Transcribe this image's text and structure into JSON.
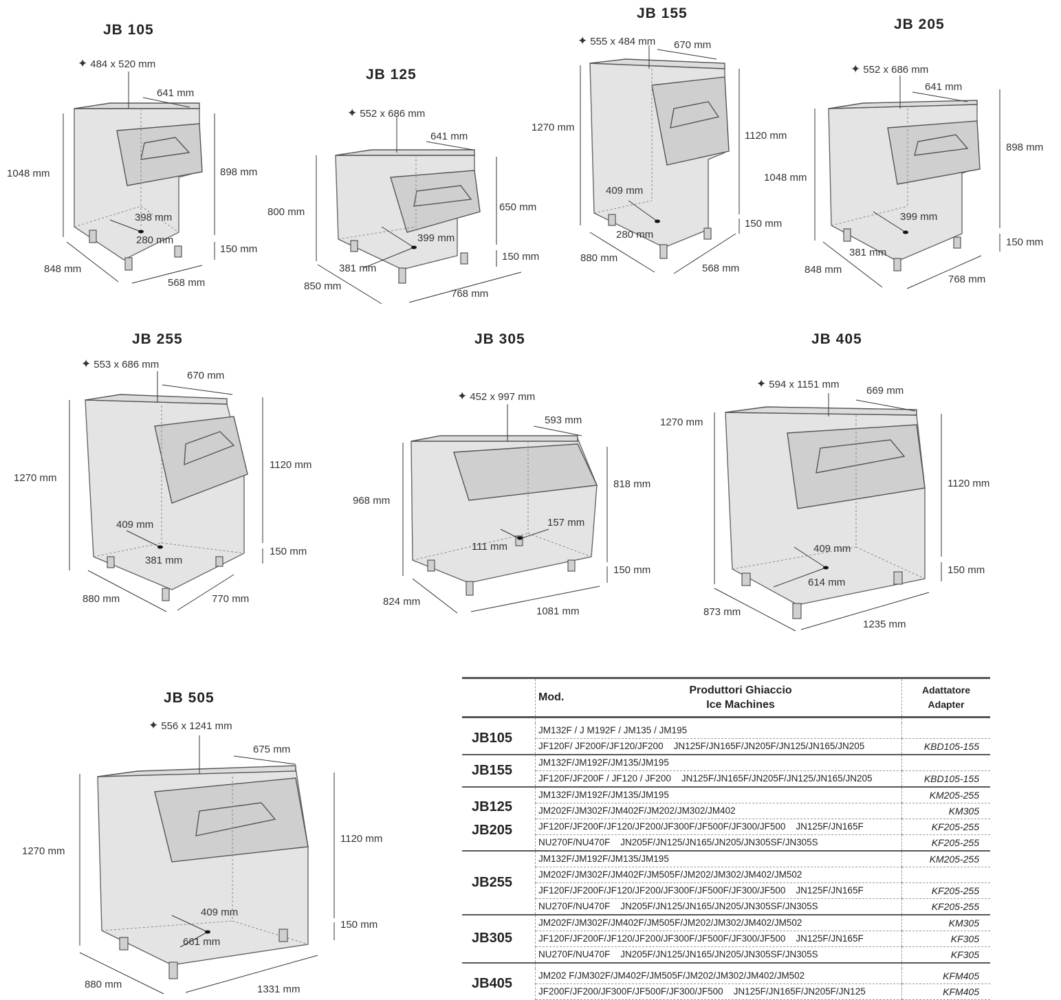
{
  "bins": [
    {
      "id": "jb105",
      "title": "JB 105",
      "opening": "484 x 520 mm",
      "depth_top": "641 mm",
      "height_total": "1048 mm",
      "height_bin": "898 mm",
      "height_legs": "150 mm",
      "drain_a": "398 mm",
      "drain_b": "280 mm",
      "depth": "848 mm",
      "width": "568 mm"
    },
    {
      "id": "jb125",
      "title": "JB 125",
      "opening": "552 x 686 mm",
      "depth_top": "641 mm",
      "height_total": "800 mm",
      "height_bin": "650 mm",
      "height_legs": "150 mm",
      "drain_a": "399 mm",
      "drain_b": "381 mm",
      "depth": "850 mm",
      "width": "768 mm"
    },
    {
      "id": "jb155",
      "title": "JB 155",
      "opening": "555 x 484 mm",
      "depth_top": "670 mm",
      "height_total": "1270 mm",
      "height_bin": "1120 mm",
      "height_legs": "150 mm",
      "drain_a": "409 mm",
      "drain_b": "280 mm",
      "depth": "880 mm",
      "width": "568 mm"
    },
    {
      "id": "jb205",
      "title": "JB 205",
      "opening": "552 x 686 mm",
      "depth_top": "641 mm",
      "height_total": "1048 mm",
      "height_bin": "898 mm",
      "height_legs": "150 mm",
      "drain_a": "399 mm",
      "drain_b": "381 mm",
      "depth": "848 mm",
      "width": "768 mm"
    },
    {
      "id": "jb255",
      "title": "JB 255",
      "opening": "553 x 686 mm",
      "depth_top": "670 mm",
      "height_total": "1270 mm",
      "height_bin": "1120 mm",
      "height_legs": "150 mm",
      "drain_a": "409 mm",
      "drain_b": "381 mm",
      "depth": "880 mm",
      "width": "770 mm"
    },
    {
      "id": "jb305",
      "title": "JB 305",
      "opening": "452 x 997 mm",
      "depth_top": "593 mm",
      "height_total": "968 mm",
      "height_bin": "818 mm",
      "height_legs": "150 mm",
      "drain_a": "157 mm",
      "drain_b": "111 mm",
      "depth": "824 mm",
      "width": "1081 mm"
    },
    {
      "id": "jb405",
      "title": "JB 405",
      "opening": "594 x 1151  mm",
      "depth_top": "669 mm",
      "height_total": "1270 mm",
      "height_bin": "1120 mm",
      "height_legs": "150 mm",
      "drain_a": "409 mm",
      "drain_b": "614 mm",
      "depth": "873 mm",
      "width": "1235 mm"
    },
    {
      "id": "jb505",
      "title": "JB 505",
      "opening": "556 x 1241  mm",
      "depth_top": "675 mm",
      "height_total": "1270 mm",
      "height_bin": "1120 mm",
      "height_legs": "150 mm",
      "drain_a": "409 mm",
      "drain_b": "661 mm",
      "depth": "880 mm",
      "width": "1331 mm"
    }
  ],
  "table": {
    "header": {
      "mod": "Mod.",
      "producers_line1": "Produttori Ghiaccio",
      "producers_line2": "Ice Machines",
      "adapter_line1": "Adattatore",
      "adapter_line2": "Adapter"
    },
    "groups": [
      {
        "model": "JB105",
        "rows": [
          {
            "machines": "JM132F / J M192F / JM135 / JM195",
            "adapter": ""
          },
          {
            "machines": "JF120F/ JF200F/JF120/JF200    JN125F/JN165F/JN205F/JN125/JN165/JN205",
            "adapter": "KBD105-155"
          }
        ]
      },
      {
        "model": "JB155",
        "rows": [
          {
            "machines": "JM132F/JM192F/JM135/JM195",
            "adapter": ""
          },
          {
            "machines": "JF120F/JF200F / JF120 / JF200    JN125F/JN165F/JN205F/JN125/JN165/JN205",
            "adapter": "KBD105-155"
          }
        ]
      },
      {
        "model": "JB125",
        "model2": "JB205",
        "rows": [
          {
            "machines": "JM132F/JM192F/JM135/JM195",
            "adapter": "KM205-255"
          },
          {
            "machines": "JM202F/JM302F/JM402F/JM202/JM302/JM402",
            "adapter": "KM305"
          },
          {
            "machines": "JF120F/JF200F/JF120/JF200/JF300F/JF500F/JF300/JF500    JN125F/JN165F",
            "adapter": "KF205-255"
          },
          {
            "machines": "NU270F/NU470F    JN205F/JN125/JN165/JN205/JN305SF/JN305S",
            "adapter": "KF205-255"
          }
        ]
      },
      {
        "model": "JB255",
        "rows": [
          {
            "machines": "JM132F/JM192F/JM135/JM195",
            "adapter": "KM205-255"
          },
          {
            "machines": "JM202F/JM302F/JM402F/JM505F/JM202/JM302/JM402/JM502",
            "adapter": ""
          },
          {
            "machines": "JF120F/JF200F/JF120/JF200/JF300F/JF500F/JF300/JF500    JN125F/JN165F",
            "adapter": "KF205-255"
          },
          {
            "machines": "NU270F/NU470F    JN205F/JN125/JN165/JN205/JN305SF/JN305S",
            "adapter": "KF205-255"
          }
        ]
      },
      {
        "model": "JB305",
        "rows": [
          {
            "machines": "JM202F/JM302F/JM402F/JM505F/JM202/JM302/JM402/JM502",
            "adapter": "KM305"
          },
          {
            "machines": "JF120F/JF200F/JF120/JF200/JF300F/JF500F/JF300/JF500    JN125F/JN165F",
            "adapter": "KF305"
          },
          {
            "machines": "NU270F/NU470F    JN205F/JN125/JN165/JN205/JN305SF/JN305S",
            "adapter": "KF305"
          }
        ]
      },
      {
        "model": "JB405",
        "rows": [
          {
            "machines": "JM202 F/JM302F/JM402F/JM505F/JM202/JM302/JM402/JM502",
            "adapter": "KFM405"
          },
          {
            "machines": "JF200F/JF200/JF300F/JF500F/JF300/JF500    JN125F/JN165F/JN205F/JN125",
            "adapter": "KFM405"
          }
        ]
      }
    ]
  }
}
